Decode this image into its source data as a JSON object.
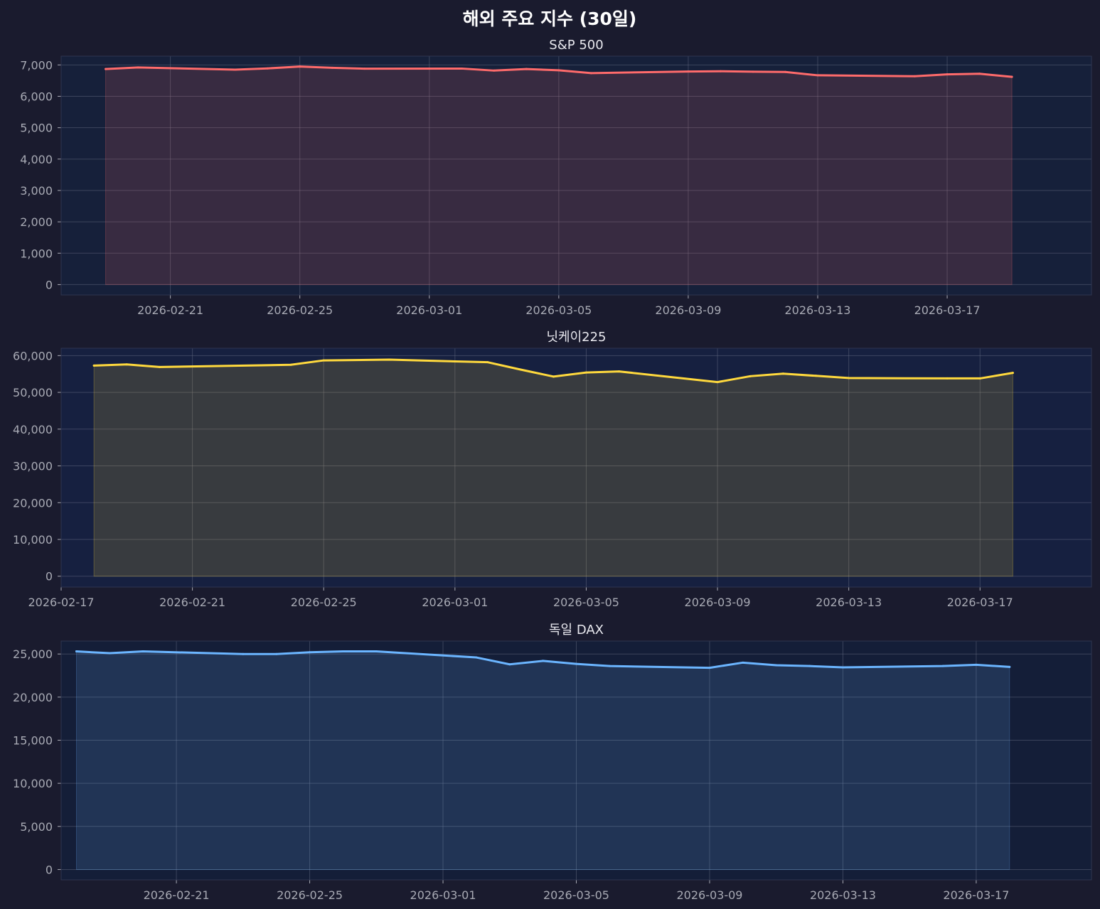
{
  "figure": {
    "title": "해외 주요 지수 (30일)",
    "background": "#1a1b2e"
  },
  "chart_data": [
    {
      "type": "area",
      "title": "S&P 500",
      "color": "#ff6b6b",
      "fill_color": "#ff6b6b",
      "axes_background": "#16203a",
      "grid": true,
      "ylim": [
        -330,
        7280
      ],
      "y_ticks": [
        0,
        1000,
        2000,
        3000,
        4000,
        5000,
        6000,
        7000
      ],
      "y_tick_labels": [
        "0",
        "1,000",
        "2,000",
        "3,000",
        "4,000",
        "5,000",
        "6,000",
        "7,000"
      ],
      "xlim": [
        "2026-02-17T15:00",
        "2026-03-21T11:00"
      ],
      "x_ticks": [
        "2026-02-21",
        "2026-02-25",
        "2026-03-01",
        "2026-03-05",
        "2026-03-09",
        "2026-03-13",
        "2026-03-17"
      ],
      "x_tick_labels": [
        "2026-02-21",
        "2026-02-25",
        "2026-03-01",
        "2026-03-05",
        "2026-03-09",
        "2026-03-13",
        "2026-03-17"
      ],
      "x": [
        "2026-02-19",
        "2026-02-20",
        "2026-02-23",
        "2026-02-24",
        "2026-02-25",
        "2026-02-26",
        "2026-02-27",
        "2026-03-02",
        "2026-03-03",
        "2026-03-04",
        "2026-03-05",
        "2026-03-06",
        "2026-03-09",
        "2026-03-10",
        "2026-03-11",
        "2026-03-12",
        "2026-03-13",
        "2026-03-16",
        "2026-03-17",
        "2026-03-18",
        "2026-03-19"
      ],
      "values": [
        6870,
        6920,
        6850,
        6890,
        6950,
        6910,
        6880,
        6885,
        6820,
        6870,
        6830,
        6740,
        6790,
        6800,
        6785,
        6775,
        6670,
        6640,
        6700,
        6720,
        6620
      ]
    },
    {
      "type": "area",
      "title": "닛케이225",
      "color": "#ffd93d",
      "fill_color": "#ffd93d",
      "axes_background": "#162040",
      "grid": true,
      "ylim": [
        -2950,
        62000
      ],
      "y_ticks": [
        0,
        10000,
        20000,
        30000,
        40000,
        50000,
        60000
      ],
      "y_tick_labels": [
        "0",
        "10,000",
        "20,000",
        "30,000",
        "40,000",
        "50,000",
        "60,000"
      ],
      "xlim": [
        "2026-02-17",
        "2026-03-20T09:30"
      ],
      "x_ticks": [
        "2026-02-17",
        "2026-02-21",
        "2026-02-25",
        "2026-03-01",
        "2026-03-05",
        "2026-03-09",
        "2026-03-13",
        "2026-03-17"
      ],
      "x_tick_labels": [
        "2026-02-17",
        "2026-02-21",
        "2026-02-25",
        "2026-03-01",
        "2026-03-05",
        "2026-03-09",
        "2026-03-13",
        "2026-03-17"
      ],
      "x": [
        "2026-02-18",
        "2026-02-19",
        "2026-02-20",
        "2026-02-24",
        "2026-02-25",
        "2026-02-27",
        "2026-03-02",
        "2026-03-03",
        "2026-03-04",
        "2026-03-05",
        "2026-03-06",
        "2026-03-09",
        "2026-03-10",
        "2026-03-11",
        "2026-03-12",
        "2026-03-13",
        "2026-03-16",
        "2026-03-17",
        "2026-03-18"
      ],
      "values": [
        57300,
        57600,
        56900,
        57500,
        58700,
        58900,
        58200,
        56200,
        54300,
        55400,
        55700,
        52800,
        54400,
        55100,
        54500,
        53900,
        53800,
        53800,
        55300
      ]
    },
    {
      "type": "area",
      "title": "독일 DAX",
      "color": "#6bb5ff",
      "fill_color": "#6bb5ff",
      "axes_background": "#141e38",
      "grid": true,
      "ylim": [
        -1200,
        26500
      ],
      "y_ticks": [
        0,
        5000,
        10000,
        15000,
        20000,
        25000
      ],
      "y_tick_labels": [
        "0",
        "5,000",
        "10,000",
        "15,000",
        "20,000",
        "25,000"
      ],
      "xlim": [
        "2026-02-17T13:00",
        "2026-03-20T11:00"
      ],
      "x_ticks": [
        "2026-02-21",
        "2026-02-25",
        "2026-03-01",
        "2026-03-05",
        "2026-03-09",
        "2026-03-13",
        "2026-03-17"
      ],
      "x_tick_labels": [
        "2026-02-21",
        "2026-02-25",
        "2026-03-01",
        "2026-03-05",
        "2026-03-09",
        "2026-03-13",
        "2026-03-17"
      ],
      "x": [
        "2026-02-18",
        "2026-02-19",
        "2026-02-20",
        "2026-02-23",
        "2026-02-24",
        "2026-02-25",
        "2026-02-26",
        "2026-02-27",
        "2026-03-02",
        "2026-03-03",
        "2026-03-04",
        "2026-03-05",
        "2026-03-06",
        "2026-03-09",
        "2026-03-10",
        "2026-03-11",
        "2026-03-12",
        "2026-03-13",
        "2026-03-16",
        "2026-03-17",
        "2026-03-18"
      ],
      "values": [
        25300,
        25100,
        25300,
        25000,
        25000,
        25200,
        25300,
        25300,
        24600,
        23800,
        24200,
        23850,
        23600,
        23400,
        24000,
        23700,
        23600,
        23450,
        23600,
        23750,
        23500
      ]
    }
  ]
}
